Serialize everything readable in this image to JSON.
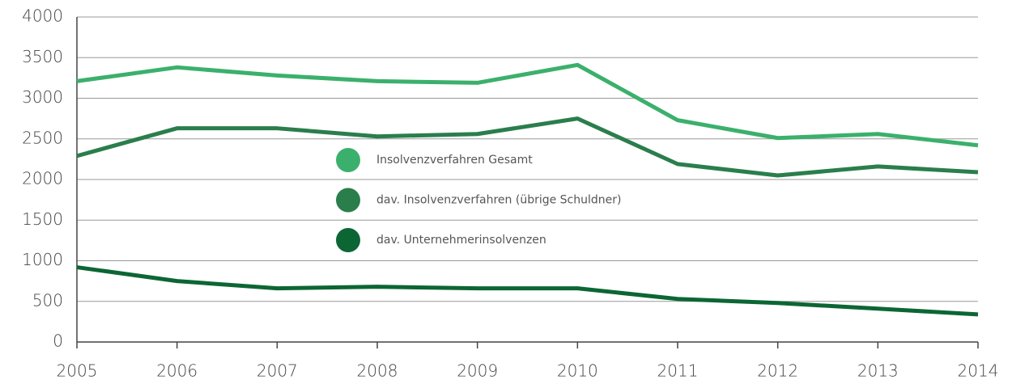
{
  "chart_data": {
    "type": "line",
    "categories": [
      "2005",
      "2006",
      "2007",
      "2008",
      "2009",
      "2010",
      "2011",
      "2012",
      "2013",
      "2014"
    ],
    "series": [
      {
        "name": "Insolvenzverfahren Gesamt",
        "color": "#3bb06c",
        "values": [
          3210,
          3380,
          3280,
          3210,
          3190,
          3410,
          2730,
          2510,
          2560,
          2420
        ]
      },
      {
        "name": "dav. Insolvenzverfahren (übrige Schuldner)",
        "color": "#2a7e4c",
        "values": [
          2290,
          2630,
          2630,
          2530,
          2560,
          2750,
          2190,
          2050,
          2160,
          2090
        ]
      },
      {
        "name": "dav. Unternehmerinsolvenzen",
        "color": "#0c6634",
        "values": [
          920,
          750,
          660,
          680,
          660,
          660,
          530,
          480,
          410,
          340
        ]
      }
    ],
    "ylim": [
      0,
      4000
    ],
    "yticks": [
      0,
      500,
      1000,
      1500,
      2000,
      2500,
      3000,
      3500,
      4000
    ],
    "grid": true
  }
}
